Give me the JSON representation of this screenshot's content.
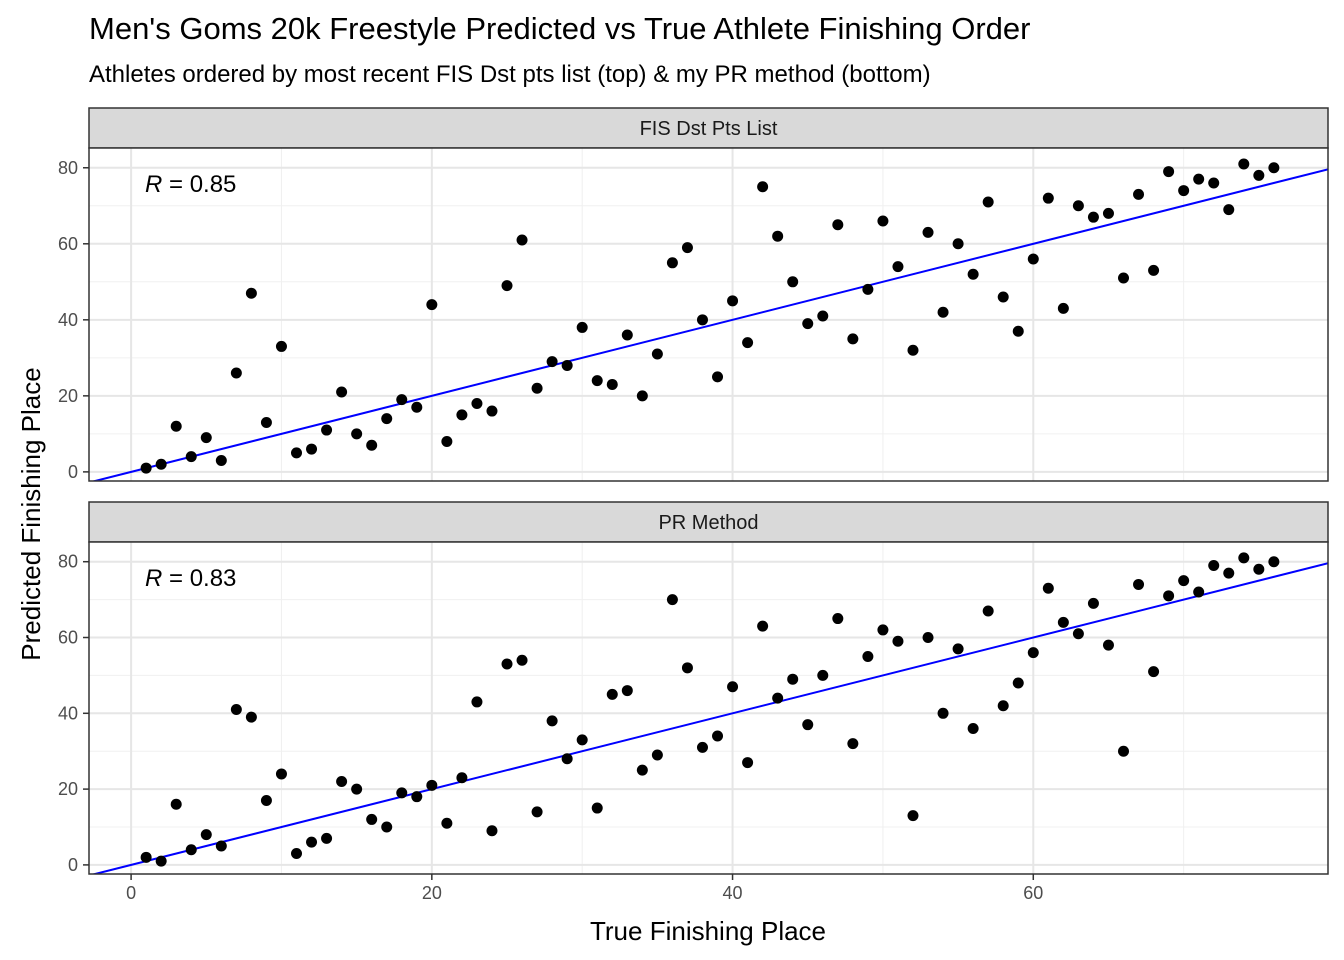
{
  "chart_data": {
    "type": "scatter",
    "title": "Men's Goms 20k Freestyle Predicted vs True Athlete Finishing Order",
    "subtitle": "Athletes ordered by most recent FIS Dst pts list (top) & my PR method (bottom)",
    "xlabel": "True Finishing Place",
    "ylabel": "Predicted Finishing Place",
    "xlim": [
      -2.8,
      79.6
    ],
    "ylim": [
      -2.4,
      85.2
    ],
    "x_ticks": [
      "0",
      "20",
      "40",
      "60"
    ],
    "y_ticks": [
      "0",
      "20",
      "40",
      "60",
      "80"
    ],
    "grid": true,
    "point_color": "#000000",
    "line_color": "#0000ff",
    "fit_line": {
      "intercept": 0,
      "slope": 1
    },
    "panels": [
      {
        "strip": "FIS Dst Pts List",
        "r_prefix": "R",
        "r_value": " = 0.85",
        "points": [
          [
            1,
            1
          ],
          [
            2,
            2
          ],
          [
            3,
            12
          ],
          [
            4,
            4
          ],
          [
            5,
            9
          ],
          [
            6,
            3
          ],
          [
            7,
            26
          ],
          [
            8,
            47
          ],
          [
            9,
            13
          ],
          [
            10,
            33
          ],
          [
            11,
            5
          ],
          [
            12,
            6
          ],
          [
            13,
            11
          ],
          [
            14,
            21
          ],
          [
            15,
            10
          ],
          [
            16,
            7
          ],
          [
            17,
            14
          ],
          [
            18,
            19
          ],
          [
            19,
            17
          ],
          [
            20,
            44
          ],
          [
            21,
            8
          ],
          [
            22,
            15
          ],
          [
            23,
            18
          ],
          [
            24,
            16
          ],
          [
            25,
            49
          ],
          [
            26,
            61
          ],
          [
            27,
            22
          ],
          [
            28,
            29
          ],
          [
            29,
            28
          ],
          [
            30,
            38
          ],
          [
            31,
            24
          ],
          [
            32,
            23
          ],
          [
            33,
            36
          ],
          [
            34,
            20
          ],
          [
            35,
            31
          ],
          [
            36,
            55
          ],
          [
            37,
            59
          ],
          [
            38,
            40
          ],
          [
            39,
            25
          ],
          [
            40,
            45
          ],
          [
            41,
            34
          ],
          [
            42,
            75
          ],
          [
            43,
            62
          ],
          [
            44,
            50
          ],
          [
            45,
            39
          ],
          [
            46,
            41
          ],
          [
            47,
            65
          ],
          [
            48,
            35
          ],
          [
            49,
            48
          ],
          [
            50,
            66
          ],
          [
            51,
            54
          ],
          [
            52,
            32
          ],
          [
            53,
            63
          ],
          [
            54,
            42
          ],
          [
            55,
            60
          ],
          [
            56,
            52
          ],
          [
            57,
            71
          ],
          [
            58,
            46
          ],
          [
            59,
            37
          ],
          [
            60,
            56
          ],
          [
            61,
            72
          ],
          [
            62,
            43
          ],
          [
            63,
            70
          ],
          [
            64,
            67
          ],
          [
            65,
            68
          ],
          [
            66,
            51
          ],
          [
            67,
            73
          ],
          [
            68,
            53
          ],
          [
            69,
            79
          ],
          [
            70,
            74
          ],
          [
            71,
            77
          ],
          [
            72,
            76
          ],
          [
            73,
            69
          ],
          [
            74,
            81
          ],
          [
            75,
            78
          ],
          [
            76,
            80
          ]
        ]
      },
      {
        "strip": "PR Method",
        "r_prefix": "R",
        "r_value": " = 0.83",
        "points": [
          [
            1,
            2
          ],
          [
            2,
            1
          ],
          [
            3,
            16
          ],
          [
            4,
            4
          ],
          [
            5,
            8
          ],
          [
            6,
            5
          ],
          [
            7,
            41
          ],
          [
            8,
            39
          ],
          [
            9,
            17
          ],
          [
            10,
            24
          ],
          [
            11,
            3
          ],
          [
            12,
            6
          ],
          [
            13,
            7
          ],
          [
            14,
            22
          ],
          [
            15,
            20
          ],
          [
            16,
            12
          ],
          [
            17,
            10
          ],
          [
            18,
            19
          ],
          [
            19,
            18
          ],
          [
            20,
            21
          ],
          [
            21,
            11
          ],
          [
            22,
            23
          ],
          [
            23,
            43
          ],
          [
            24,
            9
          ],
          [
            25,
            53
          ],
          [
            26,
            54
          ],
          [
            27,
            14
          ],
          [
            28,
            38
          ],
          [
            29,
            28
          ],
          [
            30,
            33
          ],
          [
            31,
            15
          ],
          [
            32,
            45
          ],
          [
            33,
            46
          ],
          [
            34,
            25
          ],
          [
            35,
            29
          ],
          [
            36,
            70
          ],
          [
            37,
            52
          ],
          [
            38,
            31
          ],
          [
            39,
            34
          ],
          [
            40,
            47
          ],
          [
            41,
            27
          ],
          [
            42,
            63
          ],
          [
            43,
            44
          ],
          [
            44,
            49
          ],
          [
            45,
            37
          ],
          [
            46,
            50
          ],
          [
            47,
            65
          ],
          [
            48,
            32
          ],
          [
            49,
            55
          ],
          [
            50,
            62
          ],
          [
            51,
            59
          ],
          [
            52,
            13
          ],
          [
            53,
            60
          ],
          [
            54,
            40
          ],
          [
            55,
            57
          ],
          [
            56,
            36
          ],
          [
            57,
            67
          ],
          [
            58,
            42
          ],
          [
            59,
            48
          ],
          [
            60,
            56
          ],
          [
            61,
            73
          ],
          [
            62,
            64
          ],
          [
            63,
            61
          ],
          [
            64,
            69
          ],
          [
            65,
            58
          ],
          [
            66,
            30
          ],
          [
            67,
            74
          ],
          [
            68,
            51
          ],
          [
            69,
            71
          ],
          [
            70,
            75
          ],
          [
            71,
            72
          ],
          [
            72,
            79
          ],
          [
            73,
            77
          ],
          [
            74,
            81
          ],
          [
            75,
            78
          ],
          [
            76,
            80
          ]
        ]
      }
    ]
  }
}
